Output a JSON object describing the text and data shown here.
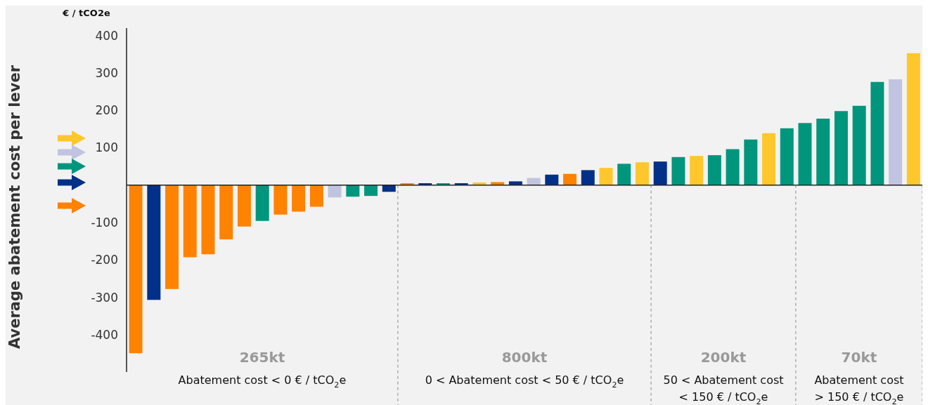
{
  "chart_data": {
    "type": "bar",
    "title": "€ / tCO2e",
    "ylabel": "Average abatement cost per lever",
    "categories": [
      null,
      null,
      null,
      null,
      null,
      null,
      null,
      null,
      null,
      null,
      null,
      null,
      null,
      null,
      null,
      null,
      null,
      null,
      null,
      null,
      null,
      null,
      null,
      null,
      null,
      null,
      null,
      null,
      null,
      null,
      null,
      null,
      null,
      null,
      null,
      null,
      null,
      null,
      null,
      null,
      null,
      null,
      null,
      null
    ],
    "values": [
      -450,
      -307,
      -278,
      -193,
      -185,
      -145,
      -111,
      -96,
      -79,
      -71,
      -58,
      -33,
      -31,
      -29,
      -18,
      5,
      5,
      5,
      5,
      7,
      8,
      10,
      19,
      28,
      30,
      40,
      46,
      57,
      61,
      63,
      75,
      78,
      80,
      96,
      122,
      139,
      152,
      166,
      178,
      198,
      212,
      276,
      283,
      353
    ],
    "colors": [
      "#ff8200",
      "#003087",
      "#ff8200",
      "#ff8200",
      "#ff8200",
      "#ff8200",
      "#ff8200",
      "#00967d",
      "#ff8200",
      "#ff8200",
      "#ff8200",
      "#c0c4e0",
      "#00967d",
      "#00967d",
      "#003087",
      "#ff8200",
      "#003087",
      "#00967d",
      "#003087",
      "#ffc72c",
      "#ff8200",
      "#003087",
      "#c0c4e0",
      "#003087",
      "#ff8200",
      "#003087",
      "#ffc72c",
      "#00967d",
      "#ffc72c",
      "#003087",
      "#00967d",
      "#ffc72c",
      "#00967d",
      "#00967d",
      "#00967d",
      "#ffc72c",
      "#00967d",
      "#00967d",
      "#00967d",
      "#00967d",
      "#00967d",
      "#00967d",
      "#c0c4e0",
      "#ffc72c"
    ],
    "ylim": [
      -500,
      420
    ],
    "yticks": [
      -400,
      -300,
      -200,
      -100,
      100,
      200,
      300,
      400
    ],
    "annotations": [
      "265kt",
      "Abatement cost < 0 € / tCO$_{2}$e",
      "800kt",
      "0 < Abatement cost < 50 € / tCO$_{2}$e",
      "200kt",
      "50 < Abatement cost\n< 150 € / tCO$_{2}$e",
      "70kt",
      "Abatement cost\n> 150 € / tCO$_{2}$e"
    ]
  }
}
